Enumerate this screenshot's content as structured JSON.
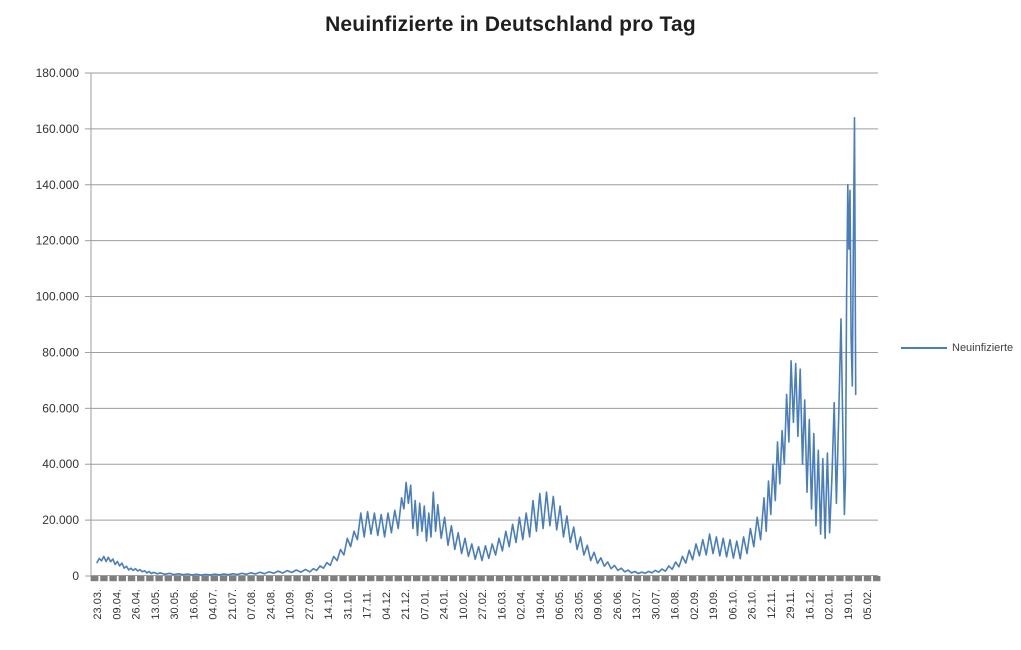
{
  "title": "Neuinfizierte in Deutschland pro Tag",
  "legend": {
    "label": "Neuinfizierte"
  },
  "colors": {
    "series": "#4a7ebb",
    "gridline": "#9d9d9d",
    "axis": "#9d9d9d",
    "tick_band": "#7f7f7f",
    "label_text": "#333333",
    "title_text": "#1f1f1f"
  },
  "chart_data": {
    "type": "line",
    "title": "Neuinfizierte in Deutschland pro Tag",
    "legend_position": "right",
    "grid": "horizontal",
    "y_axis": {
      "min": 0,
      "max": 180000,
      "tick_step": 20000,
      "tick_labels": [
        "0",
        "20.000",
        "40.000",
        "60.000",
        "80.000",
        "100.000",
        "120.000",
        "140.000",
        "160.000",
        "180.000"
      ]
    },
    "x_axis": {
      "tick_labels": [
        "23.03.",
        "09.04.",
        "26.04.",
        "13.05.",
        "30.05.",
        "16.06.",
        "04.07.",
        "21.07.",
        "07.08.",
        "24.08.",
        "10.09.",
        "27.09.",
        "14.10.",
        "31.10.",
        "17.11.",
        "04.12.",
        "21.12.",
        "07.01.",
        "24.01.",
        "10.02.",
        "27.02.",
        "16.03.",
        "02.04.",
        "19.04.",
        "06.05.",
        "23.05.",
        "09.06.",
        "26.06.",
        "13.07.",
        "30.07.",
        "16.08.",
        "02.09.",
        "19.09.",
        "06.10.",
        "26.10.",
        "12.11.",
        "29.11.",
        "16.12.",
        "02.01.",
        "19.01.",
        "05.02."
      ],
      "categories_per_tick": 17,
      "domain": [
        0,
        680
      ]
    },
    "point_format": [
      "day_index_from_first_tick",
      "value"
    ],
    "series": [
      {
        "name": "Neuinfizierte",
        "color": "#4a7ebb",
        "points": [
          [
            0,
            4800
          ],
          [
            2,
            6300
          ],
          [
            4,
            5400
          ],
          [
            6,
            7000
          ],
          [
            8,
            5200
          ],
          [
            10,
            6700
          ],
          [
            12,
            5100
          ],
          [
            14,
            6100
          ],
          [
            16,
            4100
          ],
          [
            18,
            5200
          ],
          [
            20,
            3600
          ],
          [
            22,
            4600
          ],
          [
            24,
            2800
          ],
          [
            26,
            3500
          ],
          [
            28,
            2200
          ],
          [
            30,
            2800
          ],
          [
            32,
            2000
          ],
          [
            34,
            2600
          ],
          [
            36,
            1800
          ],
          [
            38,
            2300
          ],
          [
            40,
            1500
          ],
          [
            42,
            1900
          ],
          [
            44,
            1100
          ],
          [
            46,
            1600
          ],
          [
            48,
            900
          ],
          [
            50,
            1300
          ],
          [
            53,
            800
          ],
          [
            56,
            1100
          ],
          [
            60,
            600
          ],
          [
            64,
            950
          ],
          [
            68,
            500
          ],
          [
            72,
            800
          ],
          [
            76,
            450
          ],
          [
            80,
            700
          ],
          [
            84,
            400
          ],
          [
            88,
            620
          ],
          [
            92,
            350
          ],
          [
            96,
            580
          ],
          [
            100,
            400
          ],
          [
            104,
            630
          ],
          [
            108,
            420
          ],
          [
            112,
            680
          ],
          [
            116,
            460
          ],
          [
            120,
            780
          ],
          [
            124,
            520
          ],
          [
            128,
            950
          ],
          [
            132,
            620
          ],
          [
            136,
            1150
          ],
          [
            140,
            720
          ],
          [
            144,
            1350
          ],
          [
            148,
            820
          ],
          [
            152,
            1550
          ],
          [
            156,
            950
          ],
          [
            160,
            1750
          ],
          [
            164,
            1050
          ],
          [
            168,
            1950
          ],
          [
            172,
            1250
          ],
          [
            176,
            2150
          ],
          [
            180,
            1350
          ],
          [
            184,
            2350
          ],
          [
            188,
            1450
          ],
          [
            191,
            2600
          ],
          [
            194,
            2000
          ],
          [
            197,
            3600
          ],
          [
            200,
            2800
          ],
          [
            203,
            4800
          ],
          [
            206,
            3800
          ],
          [
            209,
            7000
          ],
          [
            212,
            5500
          ],
          [
            215,
            9500
          ],
          [
            218,
            7500
          ],
          [
            221,
            13500
          ],
          [
            224,
            10500
          ],
          [
            227,
            16000
          ],
          [
            230,
            13000
          ],
          [
            233,
            22500
          ],
          [
            236,
            14000
          ],
          [
            239,
            23000
          ],
          [
            242,
            15000
          ],
          [
            245,
            22500
          ],
          [
            248,
            14500
          ],
          [
            251,
            22000
          ],
          [
            254,
            14000
          ],
          [
            257,
            22500
          ],
          [
            260,
            15500
          ],
          [
            263,
            23500
          ],
          [
            266,
            17000
          ],
          [
            269,
            28000
          ],
          [
            271,
            24000
          ],
          [
            273,
            33500
          ],
          [
            275,
            26000
          ],
          [
            277,
            32500
          ],
          [
            279,
            17000
          ],
          [
            281,
            27000
          ],
          [
            283,
            14500
          ],
          [
            285,
            26000
          ],
          [
            287,
            16000
          ],
          [
            289,
            25000
          ],
          [
            291,
            12500
          ],
          [
            293,
            22500
          ],
          [
            295,
            14000
          ],
          [
            297,
            30000
          ],
          [
            299,
            16000
          ],
          [
            301,
            25500
          ],
          [
            304,
            13500
          ],
          [
            307,
            21000
          ],
          [
            310,
            11000
          ],
          [
            313,
            18000
          ],
          [
            316,
            9500
          ],
          [
            319,
            15500
          ],
          [
            322,
            8000
          ],
          [
            325,
            13500
          ],
          [
            328,
            7000
          ],
          [
            331,
            11500
          ],
          [
            334,
            6000
          ],
          [
            337,
            10500
          ],
          [
            340,
            5500
          ],
          [
            343,
            10800
          ],
          [
            346,
            6300
          ],
          [
            349,
            11500
          ],
          [
            352,
            7500
          ],
          [
            355,
            13500
          ],
          [
            358,
            9000
          ],
          [
            361,
            16000
          ],
          [
            364,
            10500
          ],
          [
            367,
            18500
          ],
          [
            370,
            12000
          ],
          [
            373,
            21000
          ],
          [
            376,
            13000
          ],
          [
            379,
            22500
          ],
          [
            382,
            14000
          ],
          [
            385,
            27000
          ],
          [
            388,
            16000
          ],
          [
            391,
            29500
          ],
          [
            394,
            17000
          ],
          [
            397,
            30000
          ],
          [
            400,
            18000
          ],
          [
            403,
            28500
          ],
          [
            406,
            16500
          ],
          [
            409,
            25000
          ],
          [
            412,
            14000
          ],
          [
            415,
            21500
          ],
          [
            418,
            12000
          ],
          [
            421,
            17500
          ],
          [
            424,
            9500
          ],
          [
            427,
            14000
          ],
          [
            430,
            7500
          ],
          [
            433,
            11000
          ],
          [
            436,
            5500
          ],
          [
            439,
            8500
          ],
          [
            442,
            4500
          ],
          [
            445,
            6500
          ],
          [
            448,
            3500
          ],
          [
            451,
            5000
          ],
          [
            454,
            2600
          ],
          [
            457,
            3800
          ],
          [
            460,
            2000
          ],
          [
            463,
            2800
          ],
          [
            466,
            1500
          ],
          [
            469,
            2100
          ],
          [
            472,
            1100
          ],
          [
            475,
            1600
          ],
          [
            478,
            900
          ],
          [
            481,
            1400
          ],
          [
            484,
            950
          ],
          [
            487,
            1650
          ],
          [
            490,
            1100
          ],
          [
            493,
            2000
          ],
          [
            496,
            1350
          ],
          [
            499,
            2500
          ],
          [
            502,
            1700
          ],
          [
            505,
            3600
          ],
          [
            508,
            2400
          ],
          [
            511,
            5000
          ],
          [
            514,
            3300
          ],
          [
            517,
            7000
          ],
          [
            520,
            4600
          ],
          [
            523,
            9200
          ],
          [
            526,
            5800
          ],
          [
            529,
            11500
          ],
          [
            532,
            7200
          ],
          [
            535,
            13000
          ],
          [
            538,
            7500
          ],
          [
            541,
            15000
          ],
          [
            544,
            8000
          ],
          [
            547,
            14000
          ],
          [
            550,
            7200
          ],
          [
            553,
            13500
          ],
          [
            556,
            6800
          ],
          [
            559,
            13000
          ],
          [
            562,
            6400
          ],
          [
            565,
            12500
          ],
          [
            568,
            6200
          ],
          [
            571,
            14000
          ],
          [
            574,
            8000
          ],
          [
            577,
            17000
          ],
          [
            580,
            10500
          ],
          [
            583,
            21000
          ],
          [
            586,
            13000
          ],
          [
            589,
            28000
          ],
          [
            591,
            16000
          ],
          [
            593,
            34000
          ],
          [
            595,
            22000
          ],
          [
            597,
            40000
          ],
          [
            599,
            27000
          ],
          [
            601,
            48000
          ],
          [
            603,
            33000
          ],
          [
            605,
            52000
          ],
          [
            607,
            40000
          ],
          [
            609,
            65000
          ],
          [
            611,
            48000
          ],
          [
            613,
            77000
          ],
          [
            615,
            55000
          ],
          [
            617,
            76000
          ],
          [
            619,
            50000
          ],
          [
            621,
            74000
          ],
          [
            623,
            40000
          ],
          [
            625,
            63000
          ],
          [
            627,
            30000
          ],
          [
            629,
            56000
          ],
          [
            631,
            24000
          ],
          [
            633,
            51000
          ],
          [
            635,
            18000
          ],
          [
            637,
            45000
          ],
          [
            639,
            15000
          ],
          [
            641,
            42000
          ],
          [
            643,
            13500
          ],
          [
            645,
            44000
          ],
          [
            647,
            15500
          ],
          [
            649,
            35000
          ],
          [
            651,
            62000
          ],
          [
            653,
            26000
          ],
          [
            655,
            57000
          ],
          [
            657,
            92000
          ],
          [
            659,
            45000
          ],
          [
            660,
            22000
          ],
          [
            661,
            35000
          ],
          [
            662,
            100000
          ],
          [
            663,
            140000
          ],
          [
            664,
            117000
          ],
          [
            665,
            138000
          ],
          [
            666,
            85000
          ],
          [
            667,
            68000
          ],
          [
            668,
            120000
          ],
          [
            669,
            164000
          ],
          [
            670,
            65000
          ]
        ]
      }
    ]
  }
}
